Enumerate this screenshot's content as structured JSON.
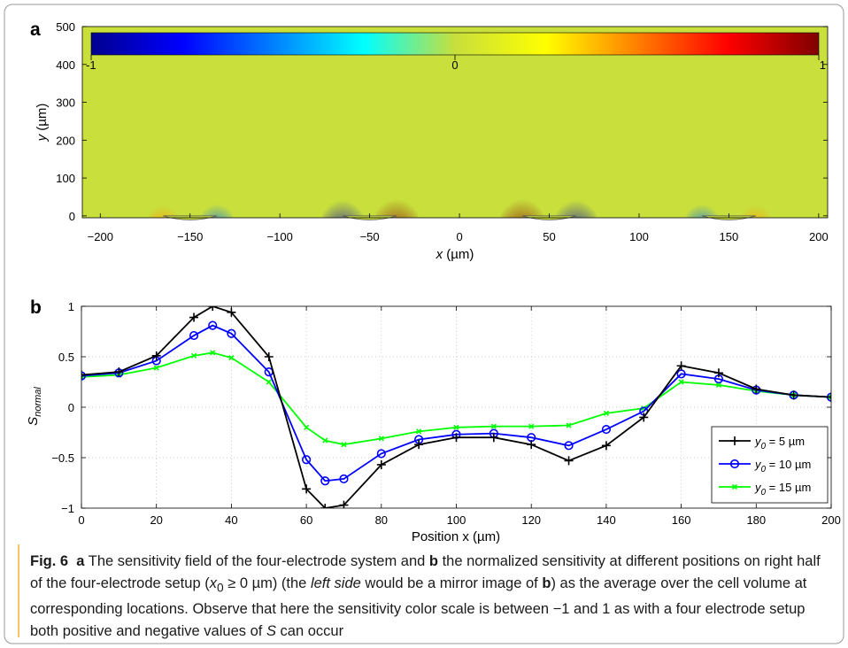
{
  "colors": {
    "background": "#c8df3c",
    "line_black": "#000000",
    "line_blue": "#0000ff",
    "line_green": "#00ff00",
    "caption_rule": "#ff9a00"
  },
  "chart_data": [
    {
      "panel_label": "a",
      "type": "heatmap",
      "title": "",
      "xlabel": "x (µm)",
      "ylabel": "y (µm)",
      "xlim": [
        -210,
        205
      ],
      "ylim": [
        -5,
        500
      ],
      "x_ticks": [
        "−200",
        "−150",
        "−100",
        "−50",
        "0",
        "50",
        "100",
        "150",
        "200"
      ],
      "x_tick_values": [
        -200,
        -150,
        -100,
        -50,
        0,
        50,
        100,
        150,
        200
      ],
      "y_ticks": [
        "0",
        "100",
        "200",
        "300",
        "400",
        "500"
      ],
      "y_tick_values": [
        0,
        100,
        200,
        300,
        400,
        500
      ],
      "colorbar": {
        "min_label": "-1",
        "mid_label": "0",
        "max_label": "1",
        "range": [
          -1,
          1
        ],
        "colormap": "jet"
      },
      "hotspots": [
        {
          "x": -165,
          "value": 0.45
        },
        {
          "x": -135,
          "value": -0.55
        },
        {
          "x": -65,
          "value": -0.9
        },
        {
          "x": -35,
          "value": 1.0
        },
        {
          "x": 35,
          "value": 1.0
        },
        {
          "x": 65,
          "value": -0.9
        },
        {
          "x": 135,
          "value": -0.55
        },
        {
          "x": 165,
          "value": 0.45
        }
      ],
      "electrodes": [
        {
          "x_from": -165,
          "x_to": -135
        },
        {
          "x_from": -65,
          "x_to": -35
        },
        {
          "x_from": 35,
          "x_to": 65
        },
        {
          "x_from": 135,
          "x_to": 165
        }
      ]
    },
    {
      "panel_label": "b",
      "type": "line",
      "title": "",
      "xlabel": "Position x (µm)",
      "ylabel": "S",
      "ylabel_sub": "normal",
      "xlim": [
        0,
        200
      ],
      "ylim": [
        -1,
        1
      ],
      "grid": true,
      "legend_position": "bottom-right",
      "x_ticks": [
        "0",
        "20",
        "40",
        "60",
        "80",
        "100",
        "120",
        "140",
        "160",
        "180",
        "200"
      ],
      "x_tick_values": [
        0,
        20,
        40,
        60,
        80,
        100,
        120,
        140,
        160,
        180,
        200
      ],
      "y_ticks": [
        "1",
        "0.5",
        "0",
        "−0.5",
        "−1"
      ],
      "y_tick_values": [
        1,
        0.5,
        0,
        -0.5,
        -1
      ],
      "x": [
        0,
        10,
        20,
        30,
        35,
        40,
        50,
        60,
        65,
        70,
        80,
        90,
        100,
        110,
        120,
        130,
        140,
        150,
        160,
        170,
        180,
        190,
        200
      ],
      "series": [
        {
          "name": "y0 = 5 µm",
          "legend_prefix": "y",
          "legend_sub": "0",
          "legend_suffix": " = 5 µm",
          "marker": "plus",
          "values": [
            0.32,
            0.35,
            0.51,
            0.89,
            1.0,
            0.94,
            0.5,
            -0.81,
            -1.0,
            -0.97,
            -0.57,
            -0.37,
            -0.3,
            -0.3,
            -0.37,
            -0.53,
            -0.38,
            -0.1,
            0.41,
            0.34,
            0.18,
            0.12,
            0.1
          ]
        },
        {
          "name": "y0 = 10 µm",
          "legend_prefix": "y",
          "legend_sub": "0",
          "legend_suffix": " = 10 µm",
          "marker": "circle",
          "values": [
            0.31,
            0.34,
            0.46,
            0.71,
            0.81,
            0.73,
            0.35,
            -0.52,
            -0.73,
            -0.71,
            -0.46,
            -0.32,
            -0.27,
            -0.26,
            -0.3,
            -0.38,
            -0.22,
            -0.04,
            0.33,
            0.28,
            0.17,
            0.12,
            0.1
          ]
        },
        {
          "name": "y0 = 15 µm",
          "legend_prefix": "y",
          "legend_sub": "0",
          "legend_suffix": " = 15 µm",
          "marker": "x",
          "values": [
            0.3,
            0.32,
            0.39,
            0.51,
            0.54,
            0.49,
            0.25,
            -0.2,
            -0.33,
            -0.37,
            -0.31,
            -0.24,
            -0.2,
            -0.19,
            -0.19,
            -0.18,
            -0.06,
            -0.01,
            0.25,
            0.22,
            0.16,
            0.12,
            0.1
          ]
        }
      ]
    }
  ],
  "caption": {
    "fig_label": "Fig. 6",
    "a_label": "a",
    "text_1": " The sensitivity field of the four-electrode system and ",
    "b_label": "b",
    "text_2": " the normalized sensitivity at different positions on right half of the four-electrode setup (",
    "x_sym": "x",
    "x_sub": "0",
    "text_3": " ≥ 0 µm) (the ",
    "left_side": "left side",
    "text_4": " would be a mirror image of ",
    "b_label_2": "b",
    "text_5": ") as the average over the cell volume at corresponding locations. Observe that here the sensitivity color scale is between −1 and 1 as with a four electrode setup both positive and negative values of ",
    "s_sym": "S",
    "text_6": " can occur"
  }
}
